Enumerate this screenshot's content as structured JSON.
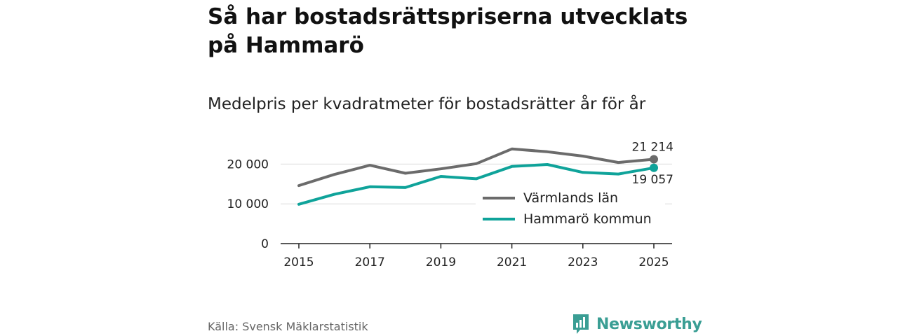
{
  "title": "Så har bostadsrättspriserna utvecklats på Hammarö",
  "subtitle": "Medelpris per kvadratmeter för bostadsrätter år för år",
  "source": "Källa: Svensk Mäklarstatistik",
  "brand": "Newsworthy",
  "colors": {
    "grey": "#6b6b6b",
    "teal": "#0fa39a",
    "brand": "#3a9e94"
  },
  "chart_data": {
    "type": "line",
    "title": "Medelpris per kvadratmeter för bostadsrätter år för år",
    "xlabel": "",
    "ylabel": "",
    "x": [
      2015,
      2016,
      2017,
      2018,
      2019,
      2020,
      2021,
      2022,
      2023,
      2024,
      2025
    ],
    "x_ticks": [
      "2015",
      "2017",
      "2019",
      "2021",
      "2023",
      "2025"
    ],
    "y_ticks": [
      "0",
      "10 000",
      "20 000"
    ],
    "y_tick_values": [
      0,
      10000,
      20000
    ],
    "ylim": [
      0,
      25000
    ],
    "grid": true,
    "legend": "bottom-right",
    "series": [
      {
        "name": "Värmlands län",
        "color": "#6b6b6b",
        "values": [
          14600,
          17400,
          19700,
          17700,
          18800,
          20100,
          23800,
          23100,
          22000,
          20400,
          21214
        ],
        "end_label": "21 214"
      },
      {
        "name": "Hammarö kommun",
        "color": "#0fa39a",
        "values": [
          9900,
          12400,
          14300,
          14100,
          16900,
          16300,
          19400,
          19900,
          17900,
          17500,
          19057
        ],
        "end_label": "19 057"
      }
    ]
  }
}
